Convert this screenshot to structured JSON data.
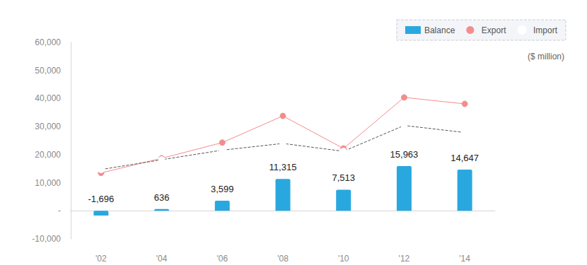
{
  "chart_data": {
    "type": "bar",
    "annotations": [
      "($ million)"
    ],
    "categories": [
      "'02",
      "'04",
      "'06",
      "'08",
      "'10",
      "'12",
      "'14"
    ],
    "series": [
      {
        "name": "Balance",
        "type": "bar",
        "color": "#29a8e0",
        "marker": "rect",
        "data_labels": true,
        "values": [
          -1696,
          636,
          3599,
          11315,
          7513,
          15963,
          14647
        ],
        "value_labels": [
          "-1,696",
          "636",
          "3,599",
          "11,315",
          "7,513",
          "15,963",
          "14,647"
        ]
      },
      {
        "name": "Export",
        "type": "line",
        "color": "#f48c8c",
        "marker": "circle",
        "line_style": "solid",
        "values": [
          13500,
          18700,
          24300,
          33800,
          22200,
          40400,
          38100
        ]
      },
      {
        "name": "Import",
        "type": "line",
        "color": "#2aa6c8",
        "marker": "emptyCircle",
        "line_style": "dashed",
        "values": [
          14700,
          18200,
          21600,
          24000,
          21200,
          30400,
          27900
        ]
      }
    ],
    "ylim": [
      -10000,
      60000
    ],
    "yticks": [
      {
        "value": -10000,
        "label": "-10,000"
      },
      {
        "value": 0,
        "label": "-"
      },
      {
        "value": 10000,
        "label": "10,000"
      },
      {
        "value": 20000,
        "label": "20,000"
      },
      {
        "value": 30000,
        "label": "30,000"
      },
      {
        "value": 40000,
        "label": "40,000"
      },
      {
        "value": 50000,
        "label": "50,000"
      },
      {
        "value": 60000,
        "label": "60,000"
      }
    ],
    "grid": false,
    "legend": "top-right"
  }
}
